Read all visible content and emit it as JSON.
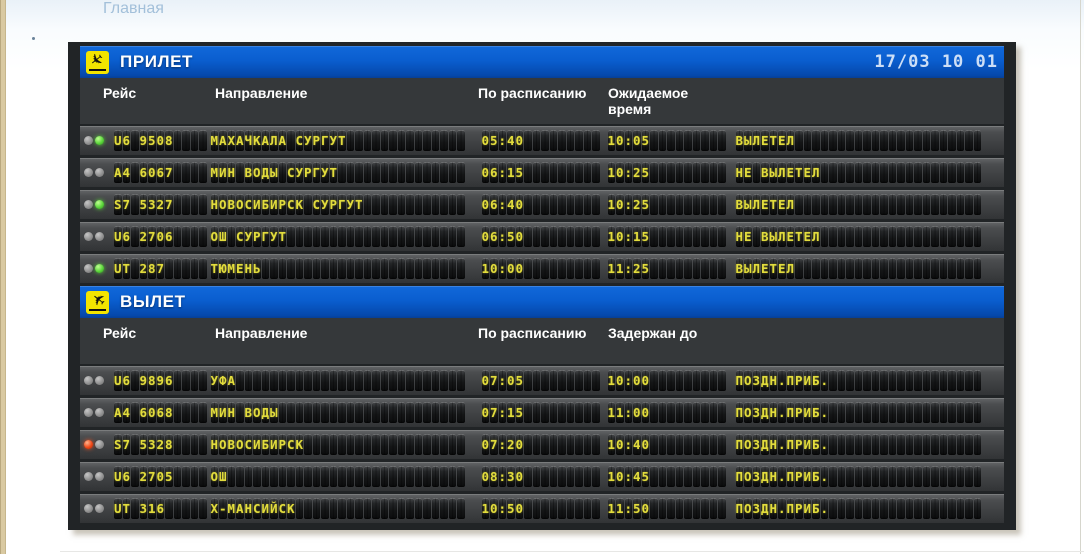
{
  "page": {
    "breadcrumb": "Главная",
    "clock": "17/03 10 01"
  },
  "board": {
    "accent_blue": "#0a5ecf",
    "cell_text_color": "#e3dd3d",
    "arrivals": {
      "title": "ПРИЛЕТ",
      "icon": "plane-landing",
      "columns": {
        "flight": "Рейс",
        "destination": "Направление",
        "scheduled": "По расписанию",
        "expected": "Ожидаемое время"
      },
      "rows": [
        {
          "led1": "off",
          "led2": "green",
          "flight": "U6 9508",
          "destination": "МАХАЧКАЛА СУРГУТ",
          "scheduled": "05:40",
          "expected": "10:05",
          "status": "ВЫЛЕТЕЛ"
        },
        {
          "led1": "off",
          "led2": "off",
          "flight": "A4 6067",
          "destination": "МИН ВОДЫ СУРГУТ",
          "scheduled": "06:15",
          "expected": "10:25",
          "status": "НЕ ВЫЛЕТЕЛ"
        },
        {
          "led1": "off",
          "led2": "green",
          "flight": "S7 5327",
          "destination": "НОВОСИБИРСК СУРГУТ",
          "scheduled": "06:40",
          "expected": "10:25",
          "status": "ВЫЛЕТЕЛ"
        },
        {
          "led1": "off",
          "led2": "off",
          "flight": "U6 2706",
          "destination": "ОШ СУРГУТ",
          "scheduled": "06:50",
          "expected": "10:15",
          "status": "НЕ ВЫЛЕТЕЛ"
        },
        {
          "led1": "off",
          "led2": "green",
          "flight": "UT 287",
          "destination": "ТЮМЕНЬ",
          "scheduled": "10:00",
          "expected": "11:25",
          "status": "ВЫЛЕТЕЛ"
        }
      ]
    },
    "departures": {
      "title": "ВЫЛЕТ",
      "icon": "plane-takeoff",
      "columns": {
        "flight": "Рейс",
        "destination": "Направление",
        "scheduled": "По расписанию",
        "expected": "Задержан до"
      },
      "rows": [
        {
          "led1": "off",
          "led2": "off",
          "flight": "U6 9896",
          "destination": "УФА",
          "scheduled": "07:05",
          "expected": "10:00",
          "status": "ПОЗДН.ПРИБ."
        },
        {
          "led1": "off",
          "led2": "off",
          "flight": "A4 6068",
          "destination": "МИН ВОДЫ",
          "scheduled": "07:15",
          "expected": "11:00",
          "status": "ПОЗДН.ПРИБ."
        },
        {
          "led1": "red",
          "led2": "off",
          "flight": "S7 5328",
          "destination": "НОВОСИБИРСК",
          "scheduled": "07:20",
          "expected": "10:40",
          "status": "ПОЗДН.ПРИБ."
        },
        {
          "led1": "off",
          "led2": "off",
          "flight": "U6 2705",
          "destination": "ОШ",
          "scheduled": "08:30",
          "expected": "10:45",
          "status": "ПОЗДН.ПРИБ."
        },
        {
          "led1": "off",
          "led2": "off",
          "flight": "UT 316",
          "destination": "Х-МАНСИЙСК",
          "scheduled": "10:50",
          "expected": "11:50",
          "status": "ПОЗДН.ПРИБ."
        }
      ]
    }
  }
}
